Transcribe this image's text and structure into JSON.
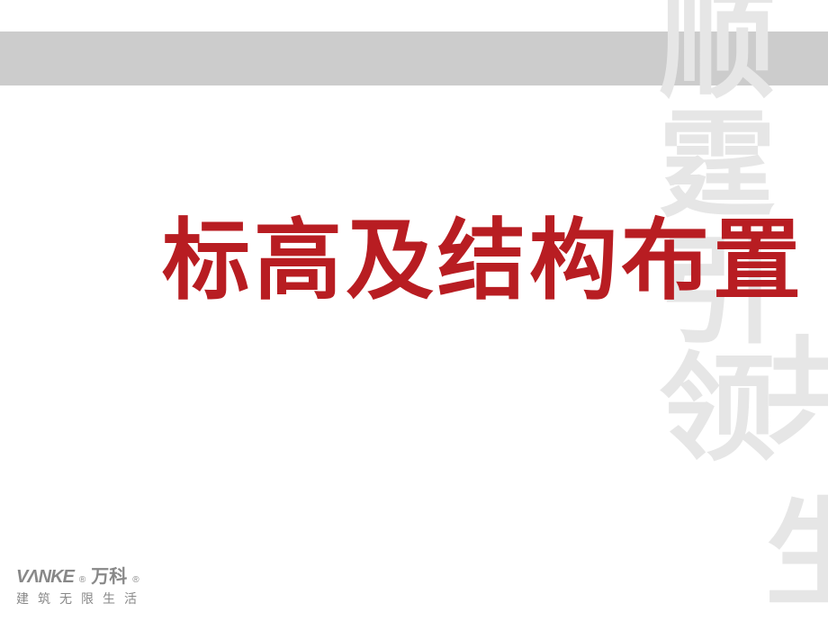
{
  "colors": {
    "gray_bar": "#cccccc",
    "title_red": "#b81d22",
    "watermark_gray": "#e6e6e6",
    "logo_gray": "#888888",
    "white": "#ffffff"
  },
  "main_title": "标高及结构布置",
  "watermark": {
    "c1": "顺",
    "c2": "霆",
    "c3": "引",
    "c4": "领",
    "c5": "共",
    "c6": "生"
  },
  "logo": {
    "mark": "VΛNKE",
    "reg": "®",
    "cn": "万科",
    "tagline": "建筑无限生活"
  }
}
